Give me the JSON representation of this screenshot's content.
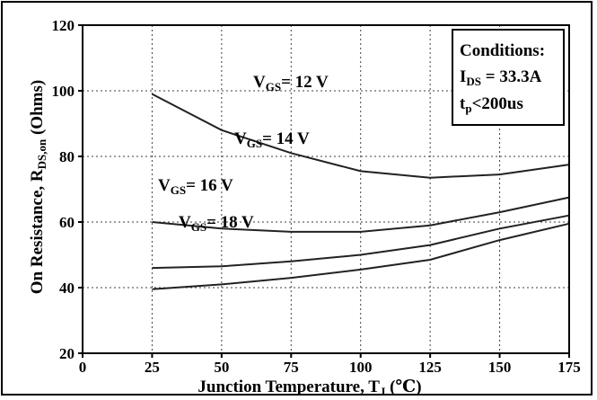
{
  "chart_data": {
    "type": "line",
    "xlabel": "Junction Temperature, T",
    "xlabel_sub": "J",
    "xlabel_unit": " (℃)",
    "ylabel": "On Resistance, R",
    "ylabel_sub": "DS,on",
    "ylabel_unit": " (Ohms)",
    "xlim": [
      0,
      175
    ],
    "ylim": [
      20,
      120
    ],
    "x_ticks": [
      0,
      25,
      50,
      75,
      100,
      125,
      150,
      175
    ],
    "y_ticks": [
      20,
      40,
      60,
      80,
      100,
      120
    ],
    "grid": true,
    "x": [
      25,
      50,
      75,
      100,
      125,
      150,
      175
    ],
    "series": [
      {
        "values": [
          99,
          88,
          81,
          75.5,
          73.5,
          74.5,
          77.5
        ]
      },
      {
        "values": [
          60,
          58,
          57,
          57,
          59,
          63,
          67.5
        ]
      },
      {
        "values": [
          46,
          46.5,
          48,
          50,
          53,
          58,
          62
        ]
      },
      {
        "values": [
          39.5,
          41,
          43,
          45.5,
          48.5,
          54.5,
          59.5
        ]
      }
    ],
    "annotations": [
      {
        "main": "V",
        "sub": "GS",
        "rest": "= 12 V"
      },
      {
        "main": "V",
        "sub": "GS",
        "rest": "= 14 V"
      },
      {
        "main": "V",
        "sub": "GS",
        "rest": "= 16 V"
      },
      {
        "main": "V",
        "sub": "GS",
        "rest": "= 18 V"
      }
    ],
    "conditions": {
      "title": "Conditions:",
      "line1_main": "I",
      "line1_sub": "DS",
      "line1_rest": " = 33.3A",
      "line2_main": "t",
      "line2_sub": "p",
      "line2_rest": "<200us"
    }
  }
}
